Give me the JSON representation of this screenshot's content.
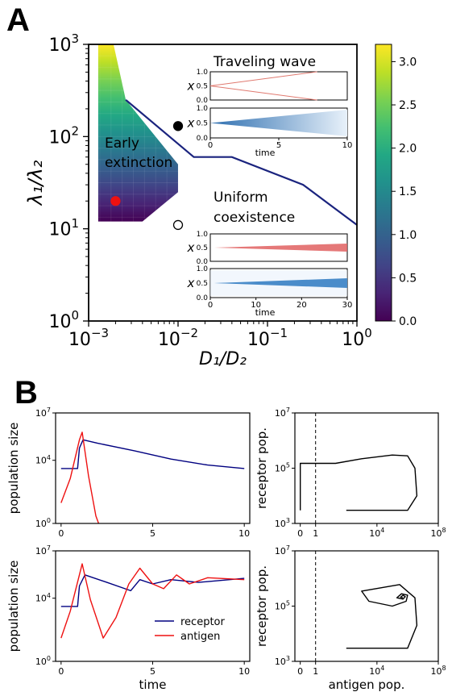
{
  "panel_labels": {
    "a": "A",
    "b": "B"
  },
  "chart_data": [
    {
      "id": "A",
      "type": "heatmap",
      "xlabel": "D₁/D₂",
      "ylabel": "λ₁/λ₂",
      "xscale": "log",
      "yscale": "log",
      "xlim": [
        0.001,
        1
      ],
      "ylim": [
        1,
        1000
      ],
      "x_ticks": [
        {
          "v": 0.001,
          "base": "10",
          "exp": "−3"
        },
        {
          "v": 0.01,
          "base": "10",
          "exp": "−2"
        },
        {
          "v": 0.1,
          "base": "10",
          "exp": "−1"
        },
        {
          "v": 1,
          "base": "10",
          "exp": "0"
        }
      ],
      "y_ticks": [
        {
          "v": 1,
          "base": "10",
          "exp": "0"
        },
        {
          "v": 10,
          "base": "10",
          "exp": "1"
        },
        {
          "v": 100,
          "base": "10",
          "exp": "2"
        },
        {
          "v": 1000,
          "base": "10",
          "exp": "3"
        }
      ],
      "region_labels": {
        "early": [
          "Early",
          "extinction"
        ],
        "uniform": [
          "Uniform",
          "coexistence"
        ],
        "wave": "Traveling wave"
      },
      "colorbar": {
        "ticks": [
          0.0,
          0.5,
          1.0,
          1.5,
          2.0,
          2.5,
          3.0
        ],
        "tick_labels": [
          "0.0",
          "0.5",
          "1.0",
          "1.5",
          "2.0",
          "2.5",
          "3.0"
        ],
        "range": [
          0,
          3.2
        ],
        "colormap": "viridis"
      },
      "boundary_line": {
        "color": "#1a237e",
        "points": [
          [
            0.0026,
            250
          ],
          [
            0.015,
            60
          ],
          [
            0.04,
            60
          ],
          [
            0.25,
            30
          ],
          [
            1.0,
            11
          ]
        ]
      },
      "markers": [
        {
          "type": "filled",
          "color": "#000000",
          "x": 0.01,
          "y": 130
        },
        {
          "type": "open",
          "color": "#000000",
          "x": 0.01,
          "y": 11
        },
        {
          "type": "filled",
          "color": "#ee1111",
          "x": 0.002,
          "y": 20
        }
      ],
      "insets": [
        {
          "title": "Traveling wave",
          "top": {
            "ylabel": "x",
            "yticks": [
              "0.0",
              "0.5",
              "1.0"
            ],
            "color": "#e07a70",
            "kind": "lines"
          },
          "bottom": {
            "ylabel": "x",
            "yticks": [
              "0.0",
              "0.5",
              "1.0"
            ],
            "color": "#3b7fc0",
            "kind": "wedge",
            "xticks": [
              "0",
              "5",
              "10"
            ],
            "xlabel": "time"
          }
        },
        {
          "top": {
            "ylabel": "x",
            "yticks": [
              "0.0",
              "0.5",
              "1.0"
            ],
            "color": "#e06060",
            "kind": "narrow"
          },
          "bottom": {
            "ylabel": "x",
            "yticks": [
              "0.0",
              "0.5",
              "1.0"
            ],
            "color": "#3b7fc0",
            "kind": "narrow",
            "xticks": [
              "0",
              "10",
              "20",
              "30"
            ],
            "xlabel": "time"
          }
        }
      ]
    },
    {
      "id": "B-top-left",
      "type": "line",
      "ylabel": "population size",
      "xlim": [
        -0.3,
        10.3
      ],
      "yscale": "log",
      "ylim": [
        1,
        10000000
      ],
      "x_ticks": [
        "0",
        "5",
        "10"
      ],
      "y_ticks": [
        {
          "base": "10",
          "exp": "0"
        },
        {
          "base": "10",
          "exp": "4"
        },
        {
          "base": "10",
          "exp": "7"
        }
      ],
      "series": [
        {
          "color": "#000080",
          "points": [
            [
              0,
              3000
            ],
            [
              0.9,
              3000
            ],
            [
              1.0,
              60000
            ],
            [
              1.2,
              200000
            ],
            [
              2,
              120000
            ],
            [
              4,
              40000
            ],
            [
              6,
              12000
            ],
            [
              8,
              5000
            ],
            [
              10,
              3000
            ]
          ]
        },
        {
          "color": "#ee1111",
          "points": [
            [
              0,
              20
            ],
            [
              0.5,
              700
            ],
            [
              1.0,
              200000
            ],
            [
              1.15,
              600000
            ],
            [
              1.5,
              1000
            ],
            [
              1.9,
              3
            ],
            [
              2.05,
              1
            ]
          ]
        }
      ]
    },
    {
      "id": "B-bottom-left",
      "type": "line",
      "ylabel": "population size",
      "xlabel": "time",
      "xlim": [
        -0.3,
        10.3
      ],
      "yscale": "log",
      "ylim": [
        1,
        10000000
      ],
      "x_ticks": [
        "0",
        "5",
        "10"
      ],
      "y_ticks": [
        {
          "base": "10",
          "exp": "0"
        },
        {
          "base": "10",
          "exp": "4"
        },
        {
          "base": "10",
          "exp": "7"
        }
      ],
      "legend": [
        {
          "label": "receptor",
          "color": "#000080"
        },
        {
          "label": "antigen",
          "color": "#ee1111"
        }
      ],
      "series": [
        {
          "name": "receptor",
          "color": "#000080",
          "points": [
            [
              0,
              3000
            ],
            [
              0.9,
              3000
            ],
            [
              1.0,
              60000
            ],
            [
              1.3,
              300000
            ],
            [
              2.5,
              100000
            ],
            [
              3.8,
              30000
            ],
            [
              4.3,
              150000
            ],
            [
              5,
              80000
            ],
            [
              6,
              150000
            ],
            [
              7.5,
              100000
            ],
            [
              10,
              180000
            ]
          ]
        },
        {
          "name": "antigen",
          "color": "#ee1111",
          "points": [
            [
              0,
              30
            ],
            [
              0.5,
              1500
            ],
            [
              1.15,
              1500000
            ],
            [
              1.6,
              8000
            ],
            [
              2.3,
              30
            ],
            [
              3.0,
              600
            ],
            [
              3.7,
              80000
            ],
            [
              4.3,
              800000
            ],
            [
              5,
              80000
            ],
            [
              5.6,
              40000
            ],
            [
              6.3,
              300000
            ],
            [
              7,
              80000
            ],
            [
              8,
              200000
            ],
            [
              10,
              150000
            ]
          ]
        }
      ]
    },
    {
      "id": "B-top-right",
      "type": "line",
      "ylabel": "receptor pop.",
      "xscale": "symlog",
      "yscale": "log",
      "ylim": [
        1000,
        10000000
      ],
      "x_ticks": [
        {
          "v": 0,
          "label": "0"
        },
        {
          "v": 1,
          "label": "1"
        },
        {
          "v": 10000,
          "base": "10",
          "exp": "4"
        },
        {
          "v": 100000000,
          "base": "10",
          "exp": "8"
        }
      ],
      "y_ticks": [
        {
          "v": 1000,
          "base": "10",
          "exp": "3"
        },
        {
          "v": 100000,
          "base": "10",
          "exp": "5"
        },
        {
          "v": 10000000,
          "base": "10",
          "exp": "7"
        }
      ],
      "vline": {
        "x": 1,
        "style": "dashed"
      },
      "series": [
        {
          "color": "#000000",
          "points": [
            [
              0,
              3000
            ],
            [
              0,
              150000
            ],
            [
              1,
              150000
            ],
            [
              20,
              150000
            ],
            [
              1000,
              220000
            ],
            [
              100000,
              300000
            ],
            [
              1000000,
              280000
            ],
            [
              3000000,
              100000
            ],
            [
              4000000,
              10000
            ],
            [
              1000000,
              3000
            ],
            [
              100,
              3000
            ]
          ]
        }
      ]
    },
    {
      "id": "B-bottom-right",
      "type": "line",
      "ylabel": "receptor pop.",
      "xlabel": "antigen pop.",
      "xscale": "symlog",
      "yscale": "log",
      "ylim": [
        1000,
        10000000
      ],
      "x_ticks": [
        {
          "v": 0,
          "label": "0"
        },
        {
          "v": 1,
          "label": "1"
        },
        {
          "v": 10000,
          "base": "10",
          "exp": "4"
        },
        {
          "v": 100000000,
          "base": "10",
          "exp": "8"
        }
      ],
      "y_ticks": [
        {
          "v": 1000,
          "base": "10",
          "exp": "3"
        },
        {
          "v": 100000,
          "base": "10",
          "exp": "5"
        },
        {
          "v": 10000000,
          "base": "10",
          "exp": "7"
        }
      ],
      "vline": {
        "x": 1,
        "style": "dashed"
      },
      "series": [
        {
          "color": "#000000",
          "points": [
            [
              100,
              3000
            ],
            [
              1000000,
              3000
            ],
            [
              4000000,
              20000
            ],
            [
              3000000,
              200000
            ],
            [
              300000,
              600000
            ],
            [
              1000,
              350000
            ],
            [
              3000,
              150000
            ],
            [
              100000,
              100000
            ],
            [
              800000,
              150000
            ],
            [
              1000000,
              250000
            ],
            [
              400000,
              280000
            ],
            [
              200000,
              200000
            ],
            [
              500000,
              180000
            ],
            [
              700000,
              220000
            ],
            [
              500000,
              250000
            ],
            [
              350000,
              210000
            ],
            [
              500000,
              200000
            ]
          ]
        }
      ]
    }
  ]
}
